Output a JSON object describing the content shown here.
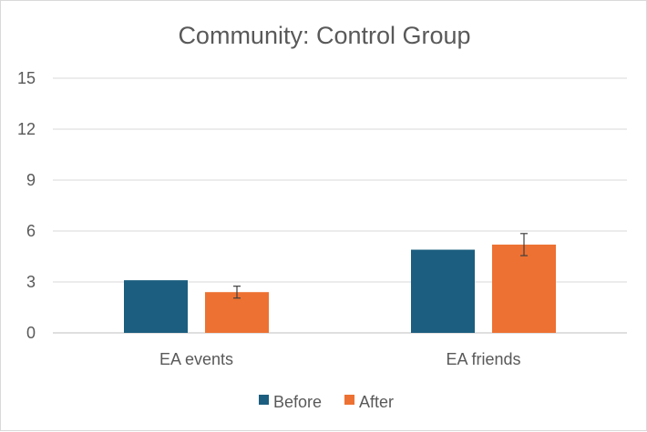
{
  "chart_data": {
    "type": "bar",
    "title": "Community: Control Group",
    "categories": [
      "EA events",
      "EA friends"
    ],
    "series": [
      {
        "name": "Before",
        "values": [
          3.1,
          4.9
        ],
        "color": "#1b5e7f"
      },
      {
        "name": "After",
        "values": [
          2.4,
          5.2
        ],
        "color": "#ed7132",
        "error": [
          0.35,
          0.65
        ]
      }
    ],
    "ylim": [
      0,
      15
    ],
    "yticks": [
      0,
      3,
      6,
      9,
      12,
      15
    ],
    "xlabel": "",
    "ylabel": "",
    "grid": true,
    "legend": "bottom"
  }
}
